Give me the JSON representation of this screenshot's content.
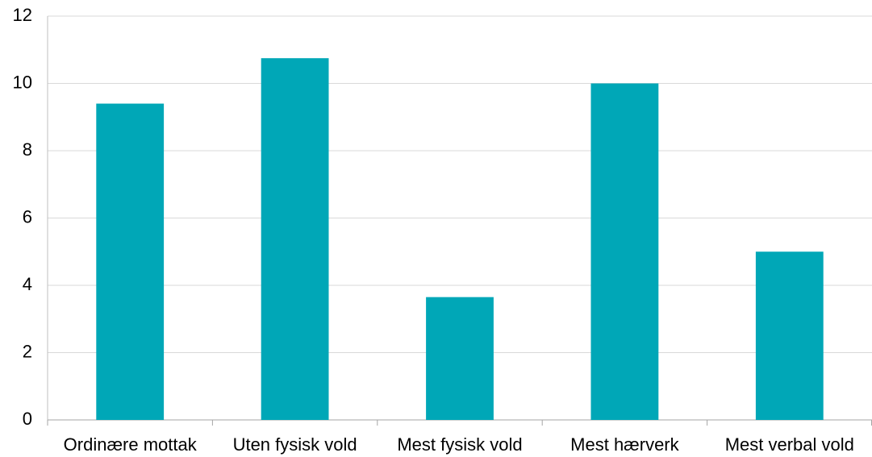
{
  "chart_data": {
    "type": "bar",
    "categories": [
      "Ordinære mottak",
      "Uten fysisk vold",
      "Mest fysisk vold",
      "Mest hærverk",
      "Mest verbal vold"
    ],
    "values": [
      9.4,
      10.75,
      3.65,
      10,
      5
    ],
    "color": "#00a7b7",
    "ylim": [
      0,
      12
    ],
    "yticks": [
      0,
      2,
      4,
      6,
      8,
      10,
      12
    ],
    "grid": true
  }
}
